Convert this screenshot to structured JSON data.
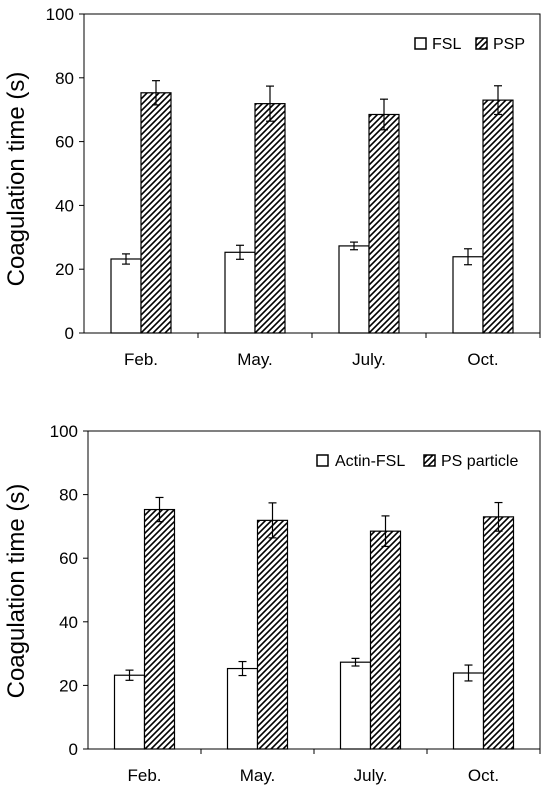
{
  "chart_data": [
    {
      "type": "bar",
      "title": "",
      "xlabel": "",
      "ylabel": "Coagulation time (s)",
      "ylim": [
        0,
        100
      ],
      "yticks": [
        0,
        20,
        40,
        60,
        80,
        100
      ],
      "grid": false,
      "legend_position": "top-right",
      "categories": [
        "Feb.",
        "May.",
        "July.",
        "Oct."
      ],
      "series": [
        {
          "name": "FSL",
          "fill": "open",
          "values": [
            23.2,
            25.3,
            27.3,
            23.9
          ],
          "errors": [
            1.6,
            2.2,
            1.2,
            2.5
          ]
        },
        {
          "name": "PSP",
          "fill": "diagonal-hatch",
          "values": [
            75.3,
            71.9,
            68.5,
            73.0
          ],
          "errors": [
            3.8,
            5.5,
            4.8,
            4.5
          ]
        }
      ]
    },
    {
      "type": "bar",
      "title": "",
      "xlabel": "",
      "ylabel": "Coagulation time (s)",
      "ylim": [
        0,
        100
      ],
      "yticks": [
        0,
        20,
        40,
        60,
        80,
        100
      ],
      "grid": false,
      "legend_position": "top-right",
      "categories": [
        "Feb.",
        "May.",
        "July.",
        "Oct."
      ],
      "series": [
        {
          "name": "Actin-FSL",
          "fill": "open",
          "values": [
            23.2,
            25.3,
            27.3,
            23.9
          ],
          "errors": [
            1.6,
            2.2,
            1.2,
            2.5
          ]
        },
        {
          "name": "PS particle",
          "fill": "diagonal-hatch",
          "values": [
            75.3,
            71.9,
            68.5,
            73.0
          ],
          "errors": [
            3.8,
            5.5,
            4.8,
            4.5
          ]
        }
      ]
    }
  ]
}
